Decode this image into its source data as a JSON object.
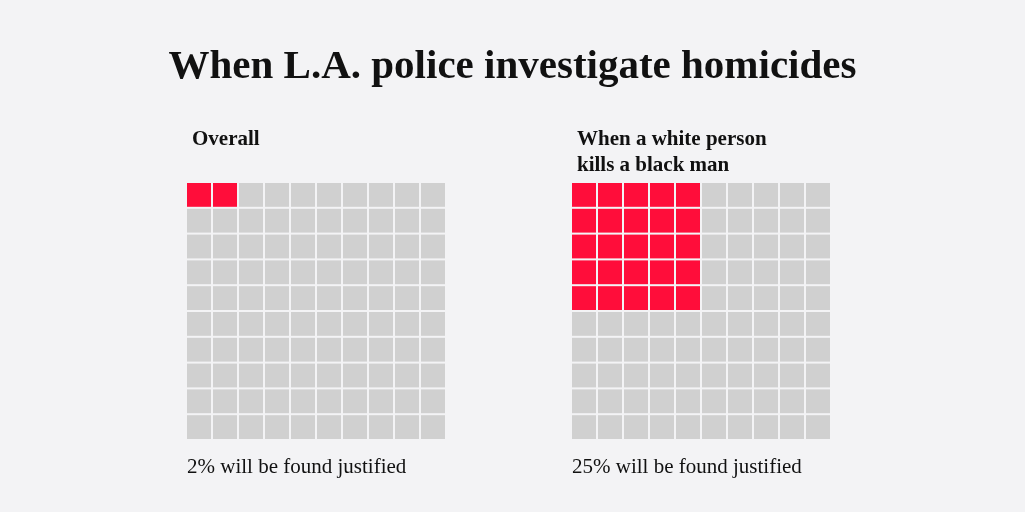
{
  "chart_data": [
    {
      "type": "other",
      "title": "When L.A. police investigate homicides"
    },
    {
      "type": "other",
      "title": "Overall",
      "values": [
        2
      ],
      "value_labels": [
        "2% will be found justified"
      ],
      "color": "#ff0d3a"
    },
    {
      "type": "other",
      "title": "When a white person kills a black man",
      "values": [
        25
      ],
      "value_labels": [
        "25% will be found justified"
      ],
      "color": "#ff0d3a"
    }
  ]
}
